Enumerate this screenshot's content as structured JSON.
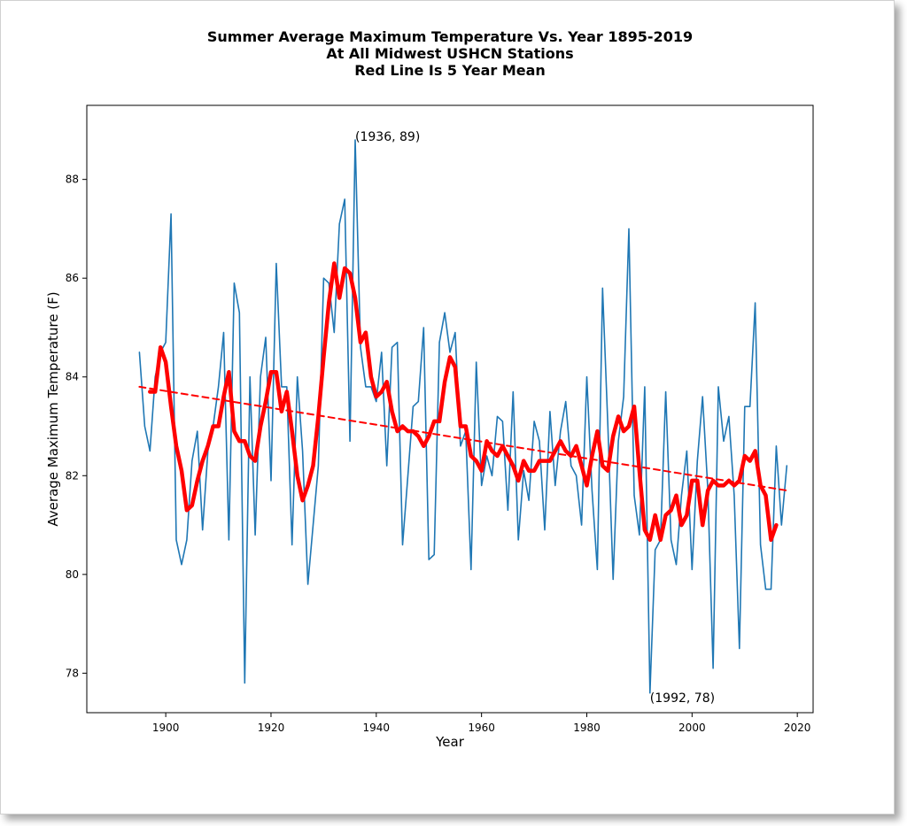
{
  "titles": [
    "Summer Average Maximum Temperature Vs. Year 1895-2019",
    "At All Midwest USHCN Stations",
    "Red Line Is 5 Year Mean"
  ],
  "chart_data": {
    "type": "line",
    "xlabel": "Year",
    "ylabel": "Average Maximum Temperature (F)",
    "xlim": [
      1885,
      2023
    ],
    "ylim": [
      77.2,
      89.5
    ],
    "xticks": [
      1900,
      1920,
      1940,
      1960,
      1980,
      2000,
      2020
    ],
    "yticks": [
      78,
      80,
      82,
      84,
      86,
      88
    ],
    "grid": false,
    "colors": {
      "annual": "#1f77b4",
      "mean": "#ff0000",
      "trend": "#ff0000"
    },
    "annotations": [
      {
        "text": "(1936, 89)",
        "x": 1936,
        "y": 88.8
      },
      {
        "text": "(1992, 78)",
        "x": 1992,
        "y": 77.7
      }
    ],
    "series": [
      {
        "x": [
          1895,
          1896,
          1897,
          1898,
          1899,
          1900,
          1901,
          1902,
          1903,
          1904,
          1905,
          1906,
          1907,
          1908,
          1909,
          1910,
          1911,
          1912,
          1913,
          1914,
          1915,
          1916,
          1917,
          1918,
          1919,
          1920,
          1921,
          1922,
          1923,
          1924,
          1925,
          1926,
          1927,
          1928,
          1929,
          1930,
          1931,
          1932,
          1933,
          1934,
          1935,
          1936,
          1937,
          1938,
          1939,
          1940,
          1941,
          1942,
          1943,
          1944,
          1945,
          1946,
          1947,
          1948,
          1949,
          1950,
          1951,
          1952,
          1953,
          1954,
          1955,
          1956,
          1957,
          1958,
          1959,
          1960,
          1961,
          1962,
          1963,
          1964,
          1965,
          1966,
          1967,
          1968,
          1969,
          1970,
          1971,
          1972,
          1973,
          1974,
          1975,
          1976,
          1977,
          1978,
          1979,
          1980,
          1981,
          1982,
          1983,
          1984,
          1985,
          1986,
          1987,
          1988,
          1989,
          1990,
          1991,
          1992,
          1993,
          1994,
          1995,
          1996,
          1997,
          1998,
          1999,
          2000,
          2001,
          2002,
          2003,
          2004,
          2005,
          2006,
          2007,
          2008,
          2009,
          2010,
          2011,
          2012,
          2013,
          2014,
          2015,
          2016,
          2017,
          2018
        ],
        "values": [
          84.5,
          83.0,
          82.5,
          84.0,
          84.5,
          84.7,
          87.3,
          80.7,
          80.2,
          80.7,
          82.3,
          82.9,
          80.9,
          82.5,
          83.0,
          83.8,
          84.9,
          80.7,
          85.9,
          85.3,
          77.8,
          84.0,
          80.8,
          84.0,
          84.8,
          81.9,
          86.3,
          83.8,
          83.8,
          80.6,
          84.0,
          82.5,
          79.8,
          81.0,
          82.2,
          86.0,
          85.9,
          84.9,
          87.1,
          87.6,
          82.7,
          88.8,
          84.6,
          83.8,
          83.8,
          83.5,
          84.5,
          82.2,
          84.6,
          84.7,
          80.6,
          82.0,
          83.4,
          83.5,
          85.0,
          80.3,
          80.4,
          84.7,
          85.3,
          84.5,
          84.9,
          82.6,
          82.9,
          80.1,
          84.3,
          81.8,
          82.4,
          82.0,
          83.2,
          83.1,
          81.3,
          83.7,
          80.7,
          82.1,
          81.5,
          83.1,
          82.7,
          80.9,
          83.3,
          81.8,
          82.9,
          83.5,
          82.2,
          82.0,
          81.0,
          84.0,
          81.7,
          80.1,
          85.8,
          83.0,
          79.9,
          82.7,
          83.6,
          87.0,
          81.6,
          80.8,
          83.8,
          77.6,
          80.5,
          80.7,
          83.7,
          80.7,
          80.2,
          81.6,
          82.5,
          80.1,
          82.3,
          83.6,
          81.7,
          78.1,
          83.8,
          82.7,
          83.2,
          81.6,
          78.5,
          83.4,
          83.4,
          85.5,
          80.6,
          79.7,
          79.7,
          82.6,
          81.0,
          82.2
        ]
      },
      {
        "x": [
          1897,
          1898,
          1899,
          1900,
          1901,
          1902,
          1903,
          1904,
          1905,
          1906,
          1907,
          1908,
          1909,
          1910,
          1911,
          1912,
          1913,
          1914,
          1915,
          1916,
          1917,
          1918,
          1919,
          1920,
          1921,
          1922,
          1923,
          1924,
          1925,
          1926,
          1927,
          1928,
          1929,
          1930,
          1931,
          1932,
          1933,
          1934,
          1935,
          1936,
          1937,
          1938,
          1939,
          1940,
          1941,
          1942,
          1943,
          1944,
          1945,
          1946,
          1947,
          1948,
          1949,
          1950,
          1951,
          1952,
          1953,
          1954,
          1955,
          1956,
          1957,
          1958,
          1959,
          1960,
          1961,
          1962,
          1963,
          1964,
          1965,
          1966,
          1967,
          1968,
          1969,
          1970,
          1971,
          1972,
          1973,
          1974,
          1975,
          1976,
          1977,
          1978,
          1979,
          1980,
          1981,
          1982,
          1983,
          1984,
          1985,
          1986,
          1987,
          1988,
          1989,
          1990,
          1991,
          1992,
          1993,
          1994,
          1995,
          1996,
          1997,
          1998,
          1999,
          2000,
          2001,
          2002,
          2003,
          2004,
          2005,
          2006,
          2007,
          2008,
          2009,
          2010,
          2011,
          2012,
          2013,
          2014,
          2015,
          2016
        ],
        "values": [
          83.7,
          83.7,
          84.6,
          84.3,
          83.4,
          82.6,
          82.1,
          81.3,
          81.4,
          81.9,
          82.3,
          82.6,
          83.0,
          83.0,
          83.6,
          84.1,
          82.9,
          82.7,
          82.7,
          82.4,
          82.3,
          83.0,
          83.5,
          84.1,
          84.1,
          83.3,
          83.7,
          82.9,
          82.0,
          81.5,
          81.8,
          82.2,
          83.2,
          84.4,
          85.5,
          86.3,
          85.6,
          86.2,
          86.1,
          85.6,
          84.7,
          84.9,
          84.0,
          83.6,
          83.7,
          83.9,
          83.3,
          82.9,
          83.0,
          82.9,
          82.9,
          82.8,
          82.6,
          82.8,
          83.1,
          83.1,
          83.9,
          84.4,
          84.2,
          83.0,
          83.0,
          82.4,
          82.3,
          82.1,
          82.7,
          82.5,
          82.4,
          82.6,
          82.4,
          82.2,
          81.9,
          82.3,
          82.1,
          82.1,
          82.3,
          82.3,
          82.3,
          82.5,
          82.7,
          82.5,
          82.4,
          82.6,
          82.2,
          81.8,
          82.4,
          82.9,
          82.2,
          82.1,
          82.8,
          83.2,
          82.9,
          83.0,
          83.4,
          82.1,
          80.9,
          80.7,
          81.2,
          80.7,
          81.2,
          81.3,
          81.6,
          81.0,
          81.2,
          81.9,
          81.9,
          81.0,
          81.7,
          81.9,
          81.8,
          81.8,
          81.9,
          81.8,
          81.9,
          82.4,
          82.3,
          82.5,
          81.8,
          81.6,
          80.7,
          81.0
        ]
      },
      {
        "x": [
          1895,
          2018
        ],
        "values": [
          83.8,
          81.7
        ]
      }
    ]
  }
}
